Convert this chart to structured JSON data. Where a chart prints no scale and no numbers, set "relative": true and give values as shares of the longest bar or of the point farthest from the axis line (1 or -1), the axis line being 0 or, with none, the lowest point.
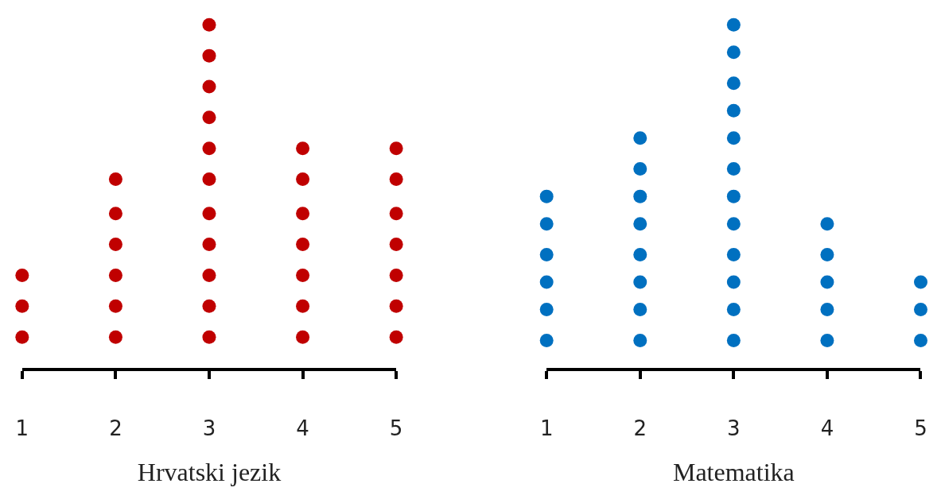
{
  "chart_data": [
    {
      "type": "scatter",
      "relative": true,
      "xlabel": "Hrvatski jezik",
      "color": "#c00000",
      "xlim": [
        1,
        5
      ],
      "xticks": [
        1,
        2,
        3,
        4,
        5
      ],
      "marker": "circle",
      "tick_labels": "x",
      "x": [
        1,
        1,
        1,
        2,
        2,
        2,
        2,
        2,
        2,
        3,
        3,
        3,
        3,
        3,
        3,
        3,
        3,
        3,
        3,
        3,
        4,
        4,
        4,
        4,
        4,
        4,
        4,
        5,
        5,
        5,
        5,
        5,
        5,
        5
      ],
      "values": [
        0.09,
        0.18,
        0.27,
        0.09,
        0.18,
        0.27,
        0.36,
        0.45,
        0.55,
        0.09,
        0.18,
        0.27,
        0.36,
        0.45,
        0.55,
        0.64,
        0.73,
        0.82,
        0.91,
        1,
        0.09,
        0.18,
        0.27,
        0.36,
        0.45,
        0.55,
        0.64,
        0.09,
        0.18,
        0.27,
        0.36,
        0.45,
        0.55,
        0.64
      ]
    },
    {
      "type": "scatter",
      "relative": true,
      "xlabel": "Matematika",
      "color": "#0070c0",
      "xlim": [
        1,
        5
      ],
      "xticks": [
        1,
        2,
        3,
        4,
        5
      ],
      "marker": "circle",
      "tick_labels": "x",
      "x": [
        1,
        1,
        1,
        1,
        1,
        1,
        2,
        2,
        2,
        2,
        2,
        2,
        2,
        2,
        3,
        3,
        3,
        3,
        3,
        3,
        3,
        3,
        3,
        3,
        3,
        3,
        4,
        4,
        4,
        4,
        4,
        5,
        5,
        5
      ],
      "values": [
        0.08,
        0.17,
        0.25,
        0.33,
        0.42,
        0.5,
        0.08,
        0.17,
        0.25,
        0.33,
        0.42,
        0.5,
        0.58,
        0.67,
        0.08,
        0.17,
        0.25,
        0.33,
        0.42,
        0.5,
        0.58,
        0.67,
        0.75,
        0.83,
        0.92,
        1,
        0.08,
        0.17,
        0.25,
        0.33,
        0.42,
        0.08,
        0.17,
        0.25
      ]
    }
  ]
}
